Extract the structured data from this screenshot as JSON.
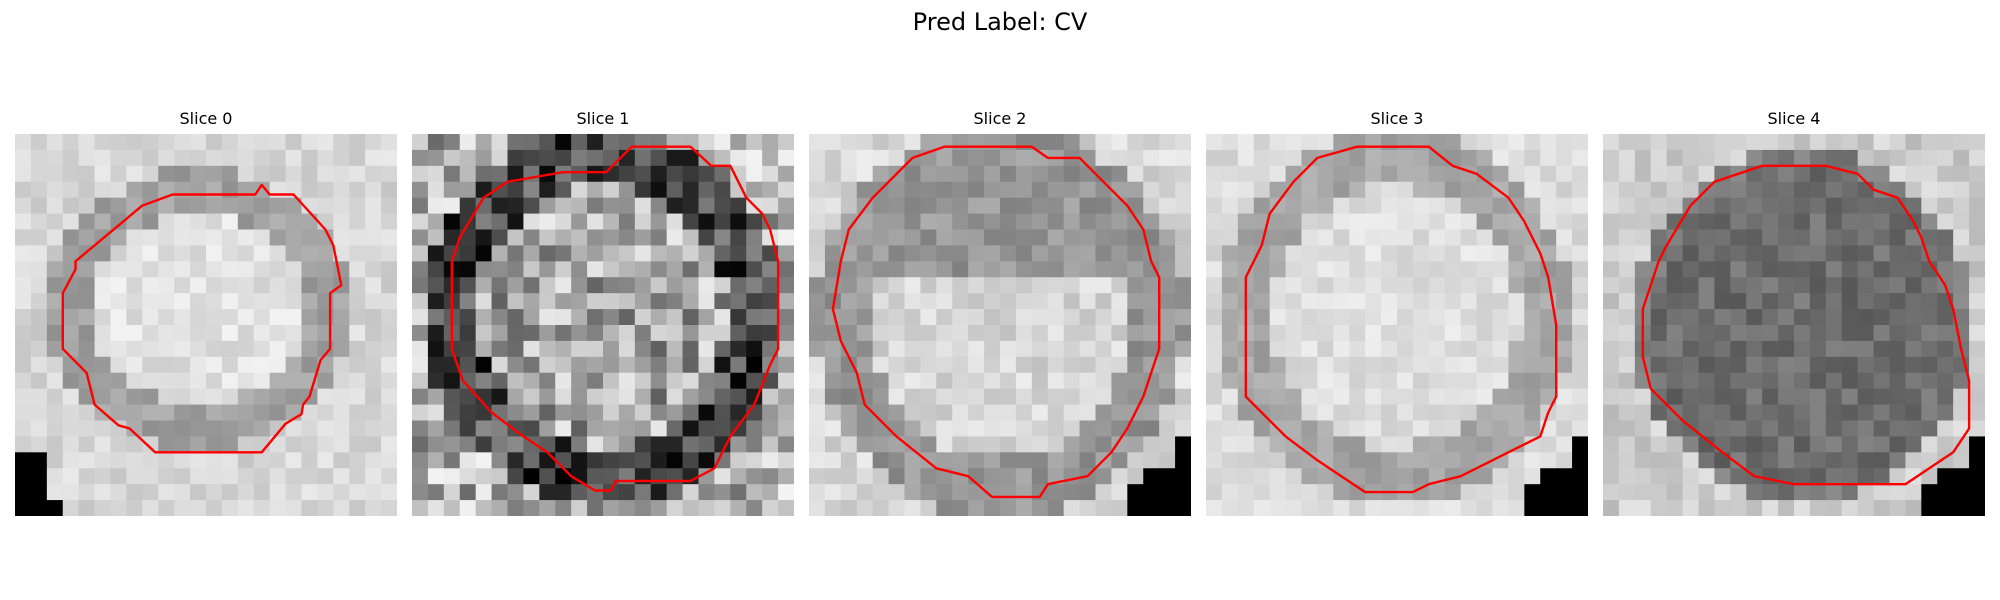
{
  "figure": {
    "title": "Pred Label: CV"
  },
  "panels": [
    {
      "title": "Slice 0",
      "texture": "light gray textured patch with faint darker ring",
      "overlay_color": "#ff0000"
    },
    {
      "title": "Slice 1",
      "texture": "high-contrast noisy gray patch with dark blotches",
      "overlay_color": "#ff0000"
    },
    {
      "title": "Slice 2",
      "texture": "light gray patch with darker upper band",
      "overlay_color": "#ff0000"
    },
    {
      "title": "Slice 3",
      "texture": "light gray smooth patch with mid-gray ring",
      "overlay_color": "#ff0000"
    },
    {
      "title": "Slice 4",
      "texture": "dark gray dense circular region on lighter background",
      "overlay_color": "#ff0000"
    }
  ]
}
